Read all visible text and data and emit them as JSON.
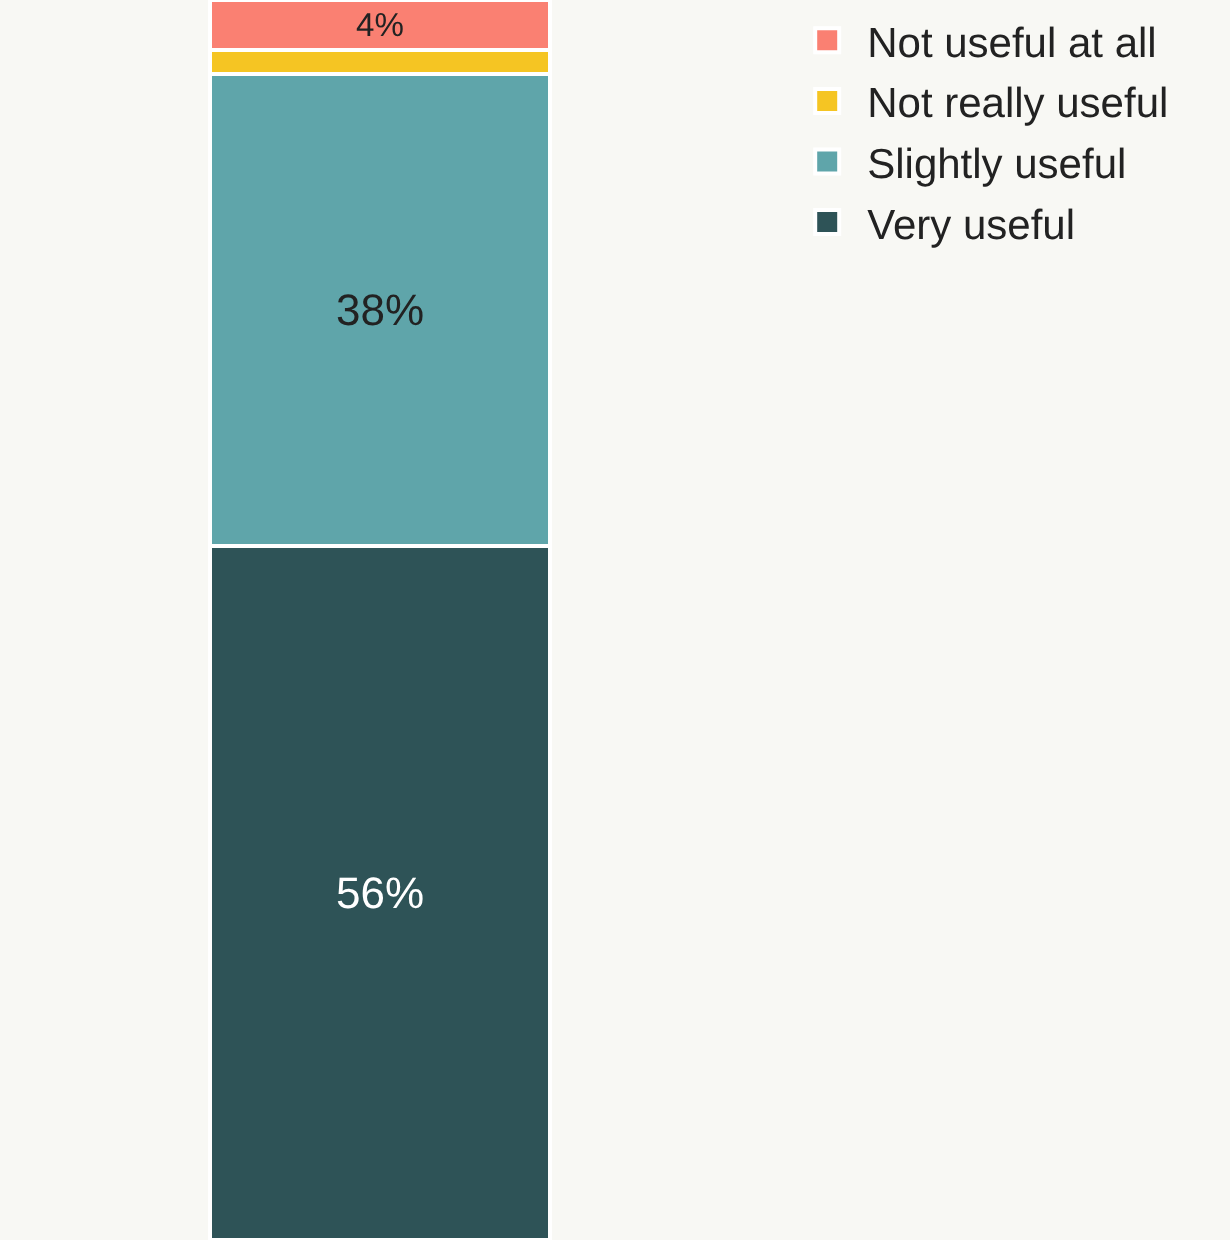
{
  "chart_data": {
    "type": "bar",
    "stacked": true,
    "categories": [
      null
    ],
    "series": [
      {
        "name": "Very useful",
        "color": "#2e5357",
        "values": [
          56
        ],
        "value_labels": [
          "56%"
        ]
      },
      {
        "name": "Slightly useful",
        "color": "#5fa5aa",
        "values": [
          38
        ],
        "value_labels": [
          "38%"
        ]
      },
      {
        "name": "Not really useful",
        "color": "#f5c523",
        "values": [
          2
        ],
        "value_labels": [
          null
        ]
      },
      {
        "name": "Not useful at all",
        "color": "#fa8072",
        "values": [
          4
        ],
        "value_labels": [
          "4%"
        ]
      }
    ],
    "ylim": [
      0,
      100
    ],
    "tick_labels": false,
    "grid": false,
    "legend": "top right"
  }
}
